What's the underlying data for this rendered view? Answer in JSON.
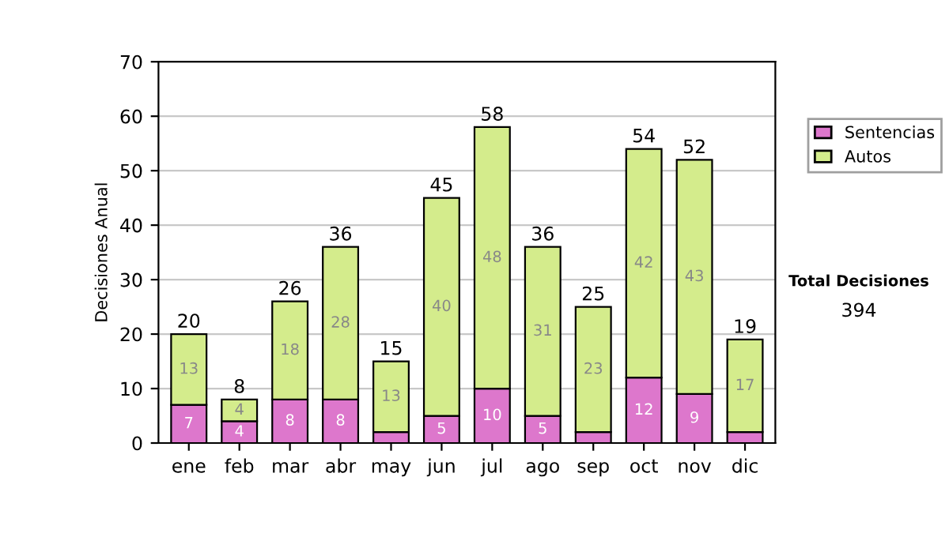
{
  "chart_data": {
    "type": "bar",
    "stacked": true,
    "ylabel": "Decisiones Anual",
    "categories": [
      "ene",
      "feb",
      "mar",
      "abr",
      "may",
      "jun",
      "jul",
      "ago",
      "sep",
      "oct",
      "nov",
      "dic"
    ],
    "series": [
      {
        "name": "Sentencias",
        "color": "#dd77cc",
        "values": [
          7,
          4,
          8,
          8,
          2,
          5,
          10,
          5,
          2,
          12,
          9,
          2
        ],
        "value_labels": [
          "7",
          "4",
          "8",
          "8",
          null,
          "5",
          "10",
          "5",
          null,
          "12",
          "9",
          null
        ]
      },
      {
        "name": "Autos",
        "color": "#d4ec8c",
        "values": [
          13,
          4,
          18,
          28,
          13,
          40,
          48,
          31,
          23,
          42,
          43,
          17
        ],
        "value_labels": [
          "13",
          "4",
          "18",
          "28",
          "13",
          "40",
          "48",
          "31",
          "23",
          "42",
          "43",
          "17"
        ]
      }
    ],
    "totals": [
      "20",
      "8",
      "26",
      "36",
      "15",
      "45",
      "58",
      "36",
      "25",
      "54",
      "52",
      "19"
    ],
    "ylim": [
      0,
      70
    ],
    "yticks": [
      0,
      10,
      20,
      30,
      40,
      50,
      60,
      70
    ],
    "grid": "y",
    "legend": "right",
    "annotations": [
      "Total Decisiones",
      "394"
    ]
  }
}
